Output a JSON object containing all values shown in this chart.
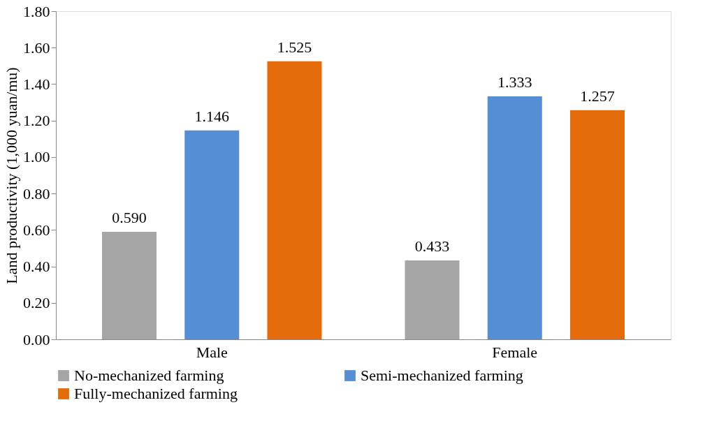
{
  "chart_data": {
    "type": "bar",
    "ylabel": "Land productivity (1,000 yuan/mu)",
    "categories": [
      "Male",
      "Female"
    ],
    "series": [
      {
        "name": "No-mechanized farming",
        "color": "#a5a5a5",
        "values": [
          0.59,
          0.433
        ],
        "value_labels": [
          "0.590",
          "0.433"
        ]
      },
      {
        "name": "Semi-mechanized farming",
        "color": "#558ed5",
        "values": [
          1.146,
          1.333
        ],
        "value_labels": [
          "1.146",
          "1.333"
        ]
      },
      {
        "name": "Fully-mechanized farming",
        "color": "#e46c0a",
        "values": [
          1.525,
          1.257
        ],
        "value_labels": [
          "1.525",
          "1.257"
        ]
      }
    ],
    "ylim": [
      0,
      1.8
    ],
    "yticks": [
      {
        "value": 0,
        "label": "0.00"
      },
      {
        "value": 0.2,
        "label": "0.20"
      },
      {
        "value": 0.4,
        "label": "0.40"
      },
      {
        "value": 0.6,
        "label": "0.60"
      },
      {
        "value": 0.8,
        "label": "0.80"
      },
      {
        "value": 1.0,
        "label": "1.00"
      },
      {
        "value": 1.2,
        "label": "1.20"
      },
      {
        "value": 1.4,
        "label": "1.40"
      },
      {
        "value": 1.6,
        "label": "1.60"
      },
      {
        "value": 1.8,
        "label": "1.80"
      }
    ],
    "grid": false,
    "legend": "bottom"
  }
}
